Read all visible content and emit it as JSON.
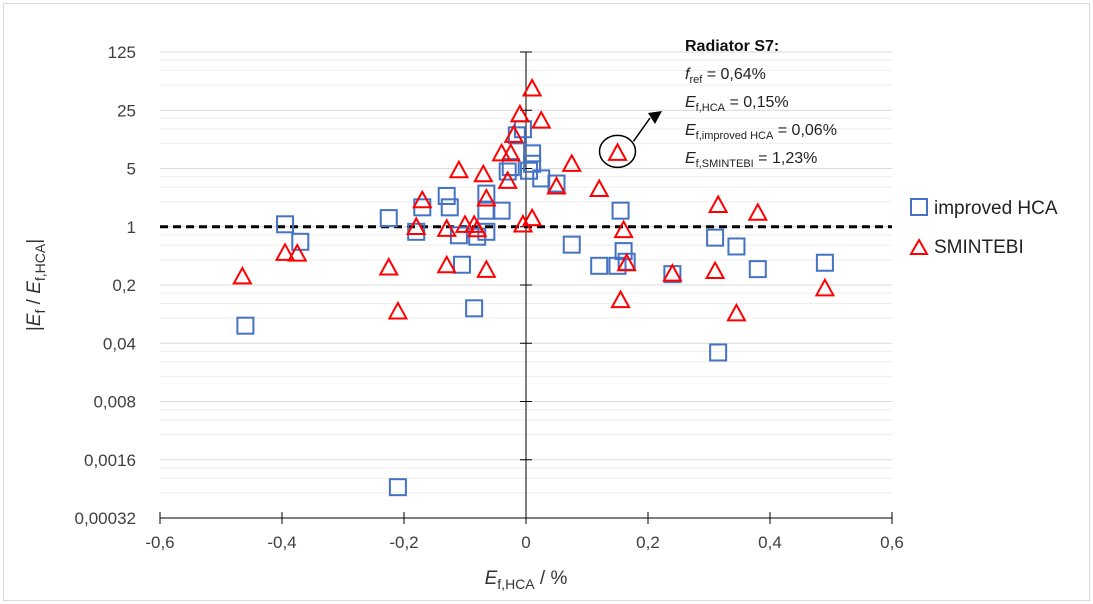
{
  "chart_data": {
    "type": "scatter",
    "xlabel": "E_f,HCA / %",
    "ylabel": "|E_f / E_f,HCA|",
    "xlim": [
      -0.6,
      0.6
    ],
    "ylim": [
      0.00032,
      125
    ],
    "y_scale": "log5",
    "x_ticks": [
      "-0,6",
      "-0,4",
      "-0,2",
      "0",
      "0,2",
      "0,4",
      "0,6"
    ],
    "y_ticks": [
      "125",
      "25",
      "5",
      "1",
      "0,2",
      "0,04",
      "0,008",
      "0,0016",
      "0,00032"
    ],
    "reference_line": {
      "y": 1,
      "style": "dashed"
    },
    "grid": true,
    "legend": "right",
    "annotation": {
      "title": "Radiator S7:",
      "lines": [
        {
          "main": "f",
          "sub": "ref",
          "value": " = 0,64%"
        },
        {
          "main": "E",
          "sub": "f,HCA",
          "value": " = 0,15%"
        },
        {
          "main": "E",
          "sub": "f,improved HCA",
          "value": " = 0,06%"
        },
        {
          "main": "E",
          "sub": "f,SMINTEBI",
          "value": " = 1,23%"
        }
      ]
    },
    "series": [
      {
        "name": "improved HCA",
        "marker": "square",
        "color": "#4472c4",
        "points": [
          [
            -0.46,
            0.065
          ],
          [
            -0.395,
            1.07
          ],
          [
            -0.37,
            0.66
          ],
          [
            -0.225,
            1.27
          ],
          [
            -0.21,
            0.00075
          ],
          [
            -0.18,
            0.87
          ],
          [
            -0.17,
            1.71
          ],
          [
            -0.13,
            2.34
          ],
          [
            -0.125,
            1.71
          ],
          [
            -0.11,
            0.79
          ],
          [
            -0.105,
            0.35
          ],
          [
            -0.085,
            0.105
          ],
          [
            -0.08,
            0.76
          ],
          [
            -0.065,
            1.56
          ],
          [
            -0.065,
            0.87
          ],
          [
            -0.065,
            2.5
          ],
          [
            -0.04,
            1.56
          ],
          [
            -0.03,
            4.6
          ],
          [
            -0.025,
            5.2
          ],
          [
            -0.015,
            12.5
          ],
          [
            -0.005,
            14.8
          ],
          [
            0.005,
            4.7
          ],
          [
            0.01,
            5.7
          ],
          [
            0.01,
            7.6
          ],
          [
            0.025,
            3.8
          ],
          [
            0.05,
            3.3
          ],
          [
            0.075,
            0.61
          ],
          [
            0.12,
            0.34
          ],
          [
            0.15,
            0.34
          ],
          [
            0.155,
            1.56
          ],
          [
            0.16,
            0.51
          ],
          [
            0.165,
            0.38
          ],
          [
            0.24,
            0.27
          ],
          [
            0.31,
            0.74
          ],
          [
            0.315,
            0.031
          ],
          [
            0.345,
            0.58
          ],
          [
            0.38,
            0.31
          ],
          [
            0.49,
            0.37
          ]
        ]
      },
      {
        "name": "SMINTEBI",
        "marker": "triangle",
        "color": "#ff0000",
        "points": [
          [
            -0.465,
            0.25
          ],
          [
            -0.395,
            0.48
          ],
          [
            -0.375,
            0.47
          ],
          [
            -0.225,
            0.32
          ],
          [
            -0.21,
            0.095
          ],
          [
            -0.18,
            0.98
          ],
          [
            -0.17,
            2.05
          ],
          [
            -0.13,
            0.93
          ],
          [
            -0.13,
            0.34
          ],
          [
            -0.11,
            4.7
          ],
          [
            -0.1,
            1.04
          ],
          [
            -0.085,
            1.04
          ],
          [
            -0.08,
            0.92
          ],
          [
            -0.07,
            4.2
          ],
          [
            -0.065,
            0.3
          ],
          [
            -0.065,
            2.15
          ],
          [
            -0.04,
            7.5
          ],
          [
            -0.03,
            3.5
          ],
          [
            -0.025,
            7.5
          ],
          [
            -0.02,
            12.5
          ],
          [
            -0.01,
            22
          ],
          [
            -0.005,
            1.05
          ],
          [
            0.01,
            1.25
          ],
          [
            0.01,
            45
          ],
          [
            0.025,
            18.5
          ],
          [
            0.05,
            3.0
          ],
          [
            0.075,
            5.6
          ],
          [
            0.12,
            2.8
          ],
          [
            0.15,
            7.6
          ],
          [
            0.155,
            0.13
          ],
          [
            0.16,
            0.9
          ],
          [
            0.165,
            0.36
          ],
          [
            0.24,
            0.27
          ],
          [
            0.31,
            0.29
          ],
          [
            0.315,
            1.8
          ],
          [
            0.345,
            0.09
          ],
          [
            0.38,
            1.45
          ],
          [
            0.49,
            0.18
          ]
        ]
      }
    ]
  }
}
